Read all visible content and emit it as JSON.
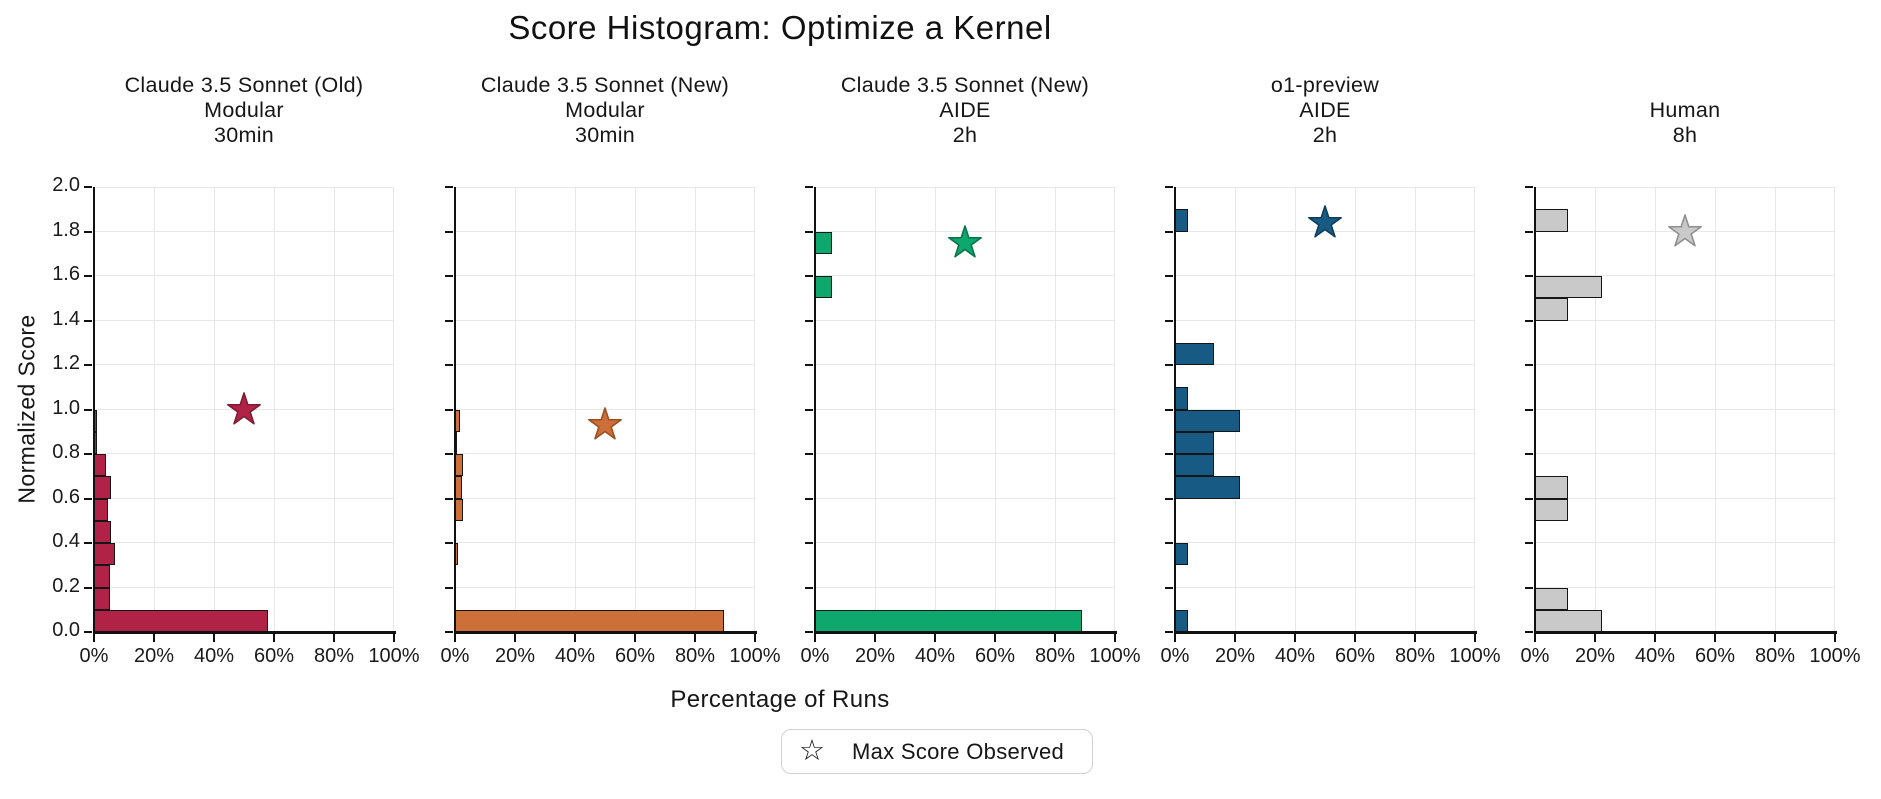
{
  "chart_data": {
    "type": "bar",
    "orientation": "horizontal-histogram",
    "title": "Score Histogram: Optimize a Kernel",
    "xlabel": "Percentage of Runs",
    "ylabel": "Normalized Score",
    "xlim": [
      0,
      100
    ],
    "ylim": [
      0.0,
      2.0
    ],
    "x_tick_labels": [
      "0%",
      "20%",
      "40%",
      "60%",
      "80%",
      "100%"
    ],
    "y_tick_labels": [
      "0.0",
      "0.2",
      "0.4",
      "0.6",
      "0.8",
      "1.0",
      "1.2",
      "1.4",
      "1.6",
      "1.8",
      "2.0"
    ],
    "bin_width": 0.1,
    "grid": true,
    "legend": {
      "marker_glyph": "☆",
      "label": "Max Score Observed",
      "position": "bottom-center"
    },
    "panels": [
      {
        "title_lines": [
          "Claude 3.5 Sonnet (Old)",
          "Modular",
          "30min"
        ],
        "color": "#b02346",
        "star_fill": "#b02346",
        "star_edge": "#801a33",
        "max_score_star": {
          "x_pct": 50,
          "score": 1.0
        },
        "bars": [
          {
            "score_bin_start": 0.0,
            "pct_of_runs": 58.0
          },
          {
            "score_bin_start": 0.1,
            "pct_of_runs": 5.2
          },
          {
            "score_bin_start": 0.2,
            "pct_of_runs": 5.2
          },
          {
            "score_bin_start": 0.3,
            "pct_of_runs": 6.9
          },
          {
            "score_bin_start": 0.4,
            "pct_of_runs": 5.5
          },
          {
            "score_bin_start": 0.5,
            "pct_of_runs": 4.7
          },
          {
            "score_bin_start": 0.6,
            "pct_of_runs": 5.5
          },
          {
            "score_bin_start": 0.7,
            "pct_of_runs": 4.0
          },
          {
            "score_bin_start": 0.8,
            "pct_of_runs": 0.9
          },
          {
            "score_bin_start": 0.9,
            "pct_of_runs": 0.9
          }
        ]
      },
      {
        "title_lines": [
          "Claude 3.5 Sonnet (New)",
          "Modular",
          "30min"
        ],
        "color": "#cd6f39",
        "star_fill": "#cd6f39",
        "star_edge": "#9a4f22",
        "max_score_star": {
          "x_pct": 50,
          "score": 0.93
        },
        "bars": [
          {
            "score_bin_start": 0.0,
            "pct_of_runs": 89.5
          },
          {
            "score_bin_start": 0.3,
            "pct_of_runs": 0.9
          },
          {
            "score_bin_start": 0.5,
            "pct_of_runs": 2.8
          },
          {
            "score_bin_start": 0.6,
            "pct_of_runs": 2.2
          },
          {
            "score_bin_start": 0.7,
            "pct_of_runs": 2.8
          },
          {
            "score_bin_start": 0.8,
            "pct_of_runs": 0.8
          },
          {
            "score_bin_start": 0.9,
            "pct_of_runs": 1.7
          }
        ]
      },
      {
        "title_lines": [
          "Claude 3.5 Sonnet (New)",
          "AIDE",
          "2h"
        ],
        "color": "#0ea86e",
        "star_fill": "#0ea86e",
        "star_edge": "#08744c",
        "max_score_star": {
          "x_pct": 50,
          "score": 1.75
        },
        "bars": [
          {
            "score_bin_start": 0.0,
            "pct_of_runs": 88.9
          },
          {
            "score_bin_start": 1.5,
            "pct_of_runs": 5.6
          },
          {
            "score_bin_start": 1.7,
            "pct_of_runs": 5.6
          }
        ]
      },
      {
        "title_lines": [
          "o1-preview",
          "AIDE",
          "2h"
        ],
        "color": "#175b84",
        "star_fill": "#175b84",
        "star_edge": "#0e3d5a",
        "max_score_star": {
          "x_pct": 50,
          "score": 1.84
        },
        "bars": [
          {
            "score_bin_start": 0.0,
            "pct_of_runs": 4.3
          },
          {
            "score_bin_start": 0.3,
            "pct_of_runs": 4.3
          },
          {
            "score_bin_start": 0.6,
            "pct_of_runs": 21.7
          },
          {
            "score_bin_start": 0.7,
            "pct_of_runs": 13.0
          },
          {
            "score_bin_start": 0.8,
            "pct_of_runs": 13.0
          },
          {
            "score_bin_start": 0.9,
            "pct_of_runs": 21.7
          },
          {
            "score_bin_start": 1.0,
            "pct_of_runs": 4.3
          },
          {
            "score_bin_start": 1.2,
            "pct_of_runs": 13.0
          },
          {
            "score_bin_start": 1.8,
            "pct_of_runs": 4.3
          }
        ]
      },
      {
        "title_lines": [
          "Human",
          "8h"
        ],
        "color": "#c9c9c9",
        "star_fill": "#c9c9c9",
        "star_edge": "#909090",
        "max_score_star": {
          "x_pct": 50,
          "score": 1.8
        },
        "bars": [
          {
            "score_bin_start": 0.0,
            "pct_of_runs": 22.2
          },
          {
            "score_bin_start": 0.1,
            "pct_of_runs": 11.1
          },
          {
            "score_bin_start": 0.5,
            "pct_of_runs": 11.1
          },
          {
            "score_bin_start": 0.6,
            "pct_of_runs": 11.1
          },
          {
            "score_bin_start": 1.4,
            "pct_of_runs": 11.1
          },
          {
            "score_bin_start": 1.5,
            "pct_of_runs": 22.2
          },
          {
            "score_bin_start": 1.8,
            "pct_of_runs": 11.1
          }
        ]
      }
    ]
  }
}
